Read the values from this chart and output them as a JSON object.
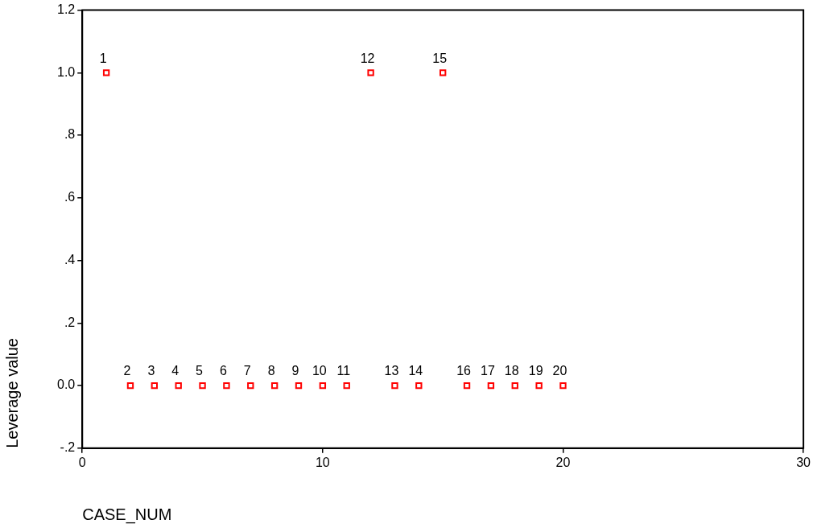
{
  "chart_data": {
    "type": "scatter",
    "xlabel": "CASE_NUM",
    "ylabel": "Leverage value",
    "x": [
      1,
      2,
      3,
      4,
      5,
      6,
      7,
      8,
      9,
      10,
      11,
      12,
      13,
      14,
      15,
      16,
      17,
      18,
      19,
      20
    ],
    "series": [
      {
        "color": "#ff0000",
        "values": [
          1,
          0,
          0,
          0,
          0,
          0,
          0,
          0,
          0,
          0,
          0,
          1,
          0,
          0,
          1,
          0,
          0,
          0,
          0,
          0
        ]
      }
    ],
    "xlim": [
      0,
      30
    ],
    "xticks": [
      0,
      10,
      20,
      30
    ],
    "ylim": [
      -0.2,
      1.2
    ],
    "yticks": [
      {
        "value": -0.2,
        "label": "-.2"
      },
      {
        "value": 0,
        "label": "0.0"
      },
      {
        "value": 0.2,
        "label": ".2"
      },
      {
        "value": 0.4,
        "label": ".4"
      },
      {
        "value": 0.6,
        "label": ".6"
      },
      {
        "value": 0.8,
        "label": ".8"
      },
      {
        "value": 1,
        "label": "1.0"
      },
      {
        "value": 1.2,
        "label": "1.2"
      }
    ],
    "marker": "square",
    "grid": false,
    "legend": false,
    "annotations": [
      {
        "text": "1",
        "x": 1,
        "y": 1
      },
      {
        "text": "2",
        "x": 2,
        "y": 0
      },
      {
        "text": "3",
        "x": 3,
        "y": 0
      },
      {
        "text": "4",
        "x": 4,
        "y": 0
      },
      {
        "text": "5",
        "x": 5,
        "y": 0
      },
      {
        "text": "6",
        "x": 6,
        "y": 0
      },
      {
        "text": "7",
        "x": 7,
        "y": 0
      },
      {
        "text": "8",
        "x": 8,
        "y": 0
      },
      {
        "text": "9",
        "x": 9,
        "y": 0
      },
      {
        "text": "10",
        "x": 10,
        "y": 0
      },
      {
        "text": "11",
        "x": 11,
        "y": 0
      },
      {
        "text": "12",
        "x": 12,
        "y": 1
      },
      {
        "text": "13",
        "x": 13,
        "y": 0
      },
      {
        "text": "14",
        "x": 14,
        "y": 0
      },
      {
        "text": "15",
        "x": 15,
        "y": 1
      },
      {
        "text": "16",
        "x": 16,
        "y": 0
      },
      {
        "text": "17",
        "x": 17,
        "y": 0
      },
      {
        "text": "18",
        "x": 18,
        "y": 0
      },
      {
        "text": "19",
        "x": 19,
        "y": 0
      },
      {
        "text": "20",
        "x": 20,
        "y": 0
      }
    ]
  }
}
